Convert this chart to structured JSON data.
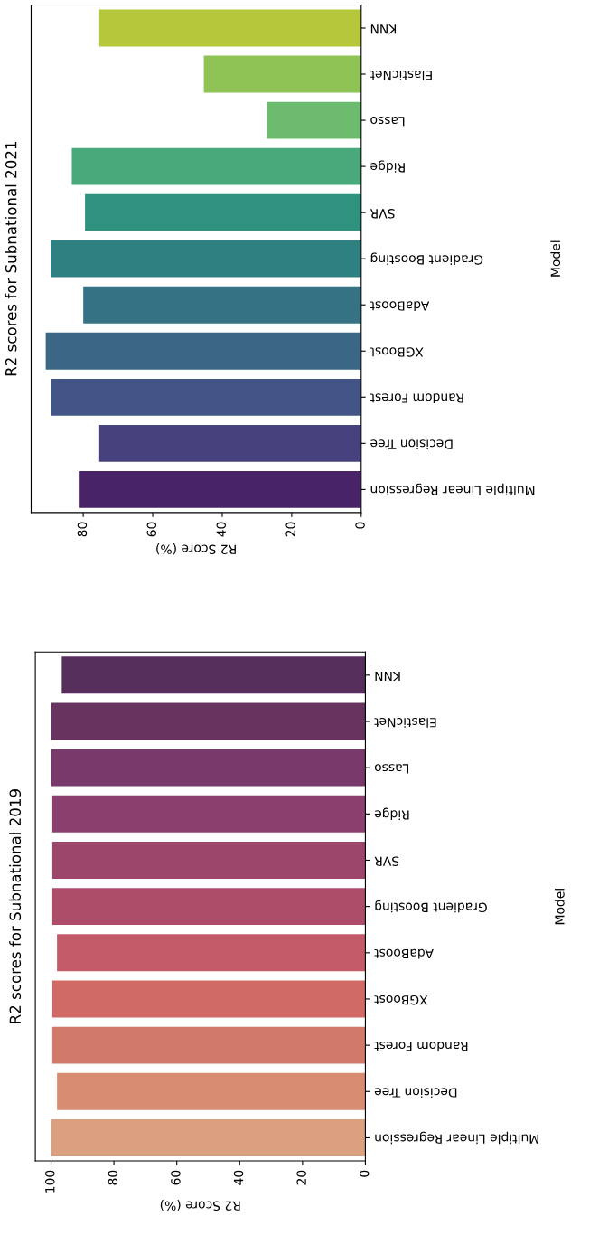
{
  "chart_data": [
    {
      "type": "bar",
      "orientation": "horizontal",
      "title": "R2 scores for Subnational 2021",
      "xlabel": "R2 Score (%)",
      "ylabel": "Model",
      "categories": [
        "KNN",
        "ElasticNet",
        "Lasso",
        "Ridge",
        "SVR",
        "Gradient Boosting",
        "AdaBoost",
        "XGBoost",
        "Random Forest",
        "Decision Tree",
        "Multiple Linear Regression"
      ],
      "values": [
        75.4,
        45.3,
        27.1,
        83.3,
        79.5,
        89.4,
        80.0,
        90.8,
        89.4,
        75.4,
        81.3
      ],
      "colors": [
        "#b5c83a",
        "#8fc356",
        "#6dbb6e",
        "#4aa97a",
        "#2f927e",
        "#2e8180",
        "#357283",
        "#3b6684",
        "#435584",
        "#46427d",
        "#482467"
      ],
      "xlim": [
        95,
        0
      ],
      "xticks": [
        0,
        20,
        40,
        60,
        80
      ],
      "grid": false,
      "legend": false
    },
    {
      "type": "bar",
      "orientation": "horizontal",
      "title": "R2 scores for Subnational 2019",
      "xlabel": "R2 Score (%)",
      "ylabel": "Model",
      "categories": [
        "KNN",
        "ElasticNet",
        "Lasso",
        "Ridge",
        "SVR",
        "Gradient Boosting",
        "AdaBoost",
        "XGBoost",
        "Random Forest",
        "Decision Tree",
        "Multiple Linear Regression"
      ],
      "values": [
        96.6,
        100,
        100,
        99.6,
        99.6,
        99.6,
        98.1,
        99.6,
        99.6,
        98.1,
        100
      ],
      "colors": [
        "#572f5c",
        "#66345f",
        "#773a6a",
        "#8a3f6e",
        "#9d466c",
        "#ae4d6a",
        "#c35a68",
        "#cf6a66",
        "#d27a6a",
        "#d88c72",
        "#dba080"
      ],
      "xlim": [
        105,
        0
      ],
      "xticks": [
        0,
        20,
        40,
        60,
        80,
        100
      ],
      "grid": false,
      "legend": false
    }
  ]
}
